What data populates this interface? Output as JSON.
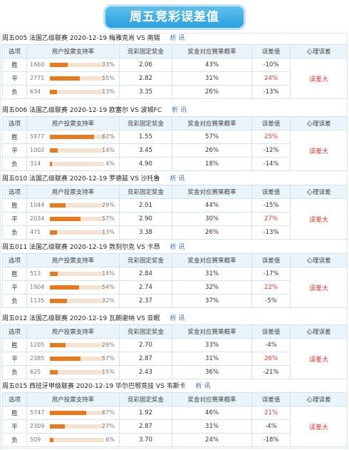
{
  "page_title": "周五竞彩误差值",
  "headers": [
    "选项",
    "用户投票支持率",
    "竞彩固定奖金",
    "奖金对应赛果概率",
    "误差值",
    "心理误差"
  ],
  "analysis_label": "析 讯",
  "matches": [
    {
      "title": "周五005 法国乙级联赛 2020-12-19 梅雅克肖 VS 南锡",
      "psych": "误差大",
      "rows": [
        {
          "opt": "胜",
          "count": "1660",
          "pct_text": "33%",
          "pct": 33,
          "odds": "2.06",
          "prob": "43%",
          "err": "-10%",
          "red": false
        },
        {
          "opt": "平",
          "count": "2771",
          "pct_text": "55%",
          "pct": 55,
          "odds": "2.82",
          "prob": "31%",
          "err": "24%",
          "red": true
        },
        {
          "opt": "负",
          "count": "634",
          "pct_text": "13%",
          "pct": 13,
          "odds": "3.35",
          "prob": "26%",
          "err": "-13%",
          "red": false
        }
      ]
    },
    {
      "title": "周五006 法国乙级联赛 2020-12-19 欧塞尔 VS 波城FC",
      "psych": "误差大",
      "rows": [
        {
          "opt": "胜",
          "count": "5977",
          "pct_text": "82%",
          "pct": 82,
          "odds": "1.55",
          "prob": "57%",
          "err": "25%",
          "red": true
        },
        {
          "opt": "平",
          "count": "1002",
          "pct_text": "14%",
          "pct": 14,
          "odds": "3.45",
          "prob": "26%",
          "err": "-12%",
          "red": false
        },
        {
          "opt": "负",
          "count": "314",
          "pct_text": "4%",
          "pct": 4,
          "odds": "4.90",
          "prob": "18%",
          "err": "-14%",
          "red": false
        }
      ]
    },
    {
      "title": "周五010 法国乙级联赛 2020-12-19 罗德兹 VS 沙托鲁",
      "psych": "误差大",
      "rows": [
        {
          "opt": "胜",
          "count": "1044",
          "pct_text": "29%",
          "pct": 29,
          "odds": "2.01",
          "prob": "44%",
          "err": "-15%",
          "red": false
        },
        {
          "opt": "平",
          "count": "2034",
          "pct_text": "57%",
          "pct": 57,
          "odds": "2.90",
          "prob": "30%",
          "err": "27%",
          "red": true
        },
        {
          "opt": "负",
          "count": "471",
          "pct_text": "13%",
          "pct": 13,
          "odds": "3.38",
          "prob": "26%",
          "err": "-13%",
          "red": false
        }
      ]
    },
    {
      "title": "周五011 法国乙级联赛 2020-12-19 敦刻尔克 VS 卡昂",
      "psych": "误差大",
      "rows": [
        {
          "opt": "胜",
          "count": "513",
          "pct_text": "14%",
          "pct": 14,
          "odds": "2.84",
          "prob": "31%",
          "err": "-17%",
          "red": false
        },
        {
          "opt": "平",
          "count": "1904",
          "pct_text": "54%",
          "pct": 54,
          "odds": "2.74",
          "prob": "32%",
          "err": "22%",
          "red": true
        },
        {
          "opt": "负",
          "count": "1135",
          "pct_text": "32%",
          "pct": 32,
          "odds": "2.37",
          "prob": "37%",
          "err": "-5%",
          "red": false
        }
      ]
    },
    {
      "title": "周五012 法国乙级联赛 2020-12-19 瓦朗谢纳 VS 亚眠",
      "psych": "误差大",
      "rows": [
        {
          "opt": "胜",
          "count": "1205",
          "pct_text": "29%",
          "pct": 29,
          "odds": "2.70",
          "prob": "33%",
          "err": "-4%",
          "red": false
        },
        {
          "opt": "平",
          "count": "2385",
          "pct_text": "57%",
          "pct": 57,
          "odds": "2.87",
          "prob": "31%",
          "err": "26%",
          "red": true
        },
        {
          "opt": "负",
          "count": "625",
          "pct_text": "15%",
          "pct": 15,
          "odds": "2.43",
          "prob": "36%",
          "err": "-21%",
          "red": false
        }
      ]
    },
    {
      "title": "周五015 西班牙甲级联赛 2020-12-19 毕尔巴鄂竞技 VS 韦斯卡",
      "psych": "误差大",
      "rows": [
        {
          "opt": "胜",
          "count": "5747",
          "pct_text": "67%",
          "pct": 67,
          "odds": "1.92",
          "prob": "46%",
          "err": "21%",
          "red": true
        },
        {
          "opt": "平",
          "count": "2309",
          "pct_text": "27%",
          "pct": 27,
          "odds": "2.87",
          "prob": "31%",
          "err": "-4%",
          "red": false
        },
        {
          "opt": "负",
          "count": "509",
          "pct_text": "6%",
          "pct": 6,
          "odds": "3.70",
          "prob": "24%",
          "err": "-18%",
          "red": false
        }
      ]
    }
  ]
}
